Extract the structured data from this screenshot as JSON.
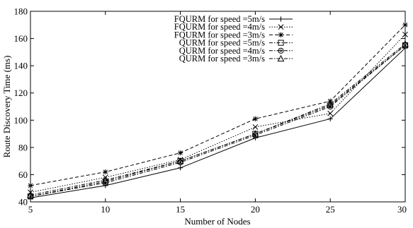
{
  "chart_data": {
    "type": "line",
    "xlabel": "Number of Nodes",
    "ylabel": "Route Discovery Time (ms)",
    "x": [
      5,
      10,
      15,
      20,
      25,
      30
    ],
    "xlim": [
      5,
      30
    ],
    "ylim": [
      40,
      180
    ],
    "xticks": [
      5,
      10,
      15,
      20,
      25,
      30
    ],
    "yticks": [
      40,
      60,
      80,
      100,
      120,
      140,
      160,
      180
    ],
    "grid": false,
    "legend_position": "top-center",
    "series": [
      {
        "name": "FQURM for speed =5m/s",
        "marker": "plus",
        "dash": "solid",
        "values": [
          43,
          52,
          65,
          87,
          101,
          153
        ]
      },
      {
        "name": "FQURM for speed =4m/s",
        "marker": "x",
        "dash": "dotted",
        "values": [
          47,
          58,
          71,
          95,
          105,
          163
        ]
      },
      {
        "name": "FQURM for speed =3m/s",
        "marker": "star",
        "dash": "dashed",
        "values": [
          52,
          62,
          76,
          101,
          114,
          170
        ]
      },
      {
        "name": "QURM for speed =5m/s",
        "marker": "square",
        "dash": "dashdot",
        "values": [
          44,
          55,
          70,
          90,
          111,
          155
        ]
      },
      {
        "name": "QURM for speed =4m/s",
        "marker": "circle",
        "dash": "dashdot",
        "values": [
          44,
          54,
          69,
          89,
          110,
          155
        ]
      },
      {
        "name": "QURM for speed =3m/s",
        "marker": "triangle",
        "dash": "dashdot",
        "values": [
          45,
          56,
          70,
          90,
          112,
          156
        ]
      }
    ]
  }
}
